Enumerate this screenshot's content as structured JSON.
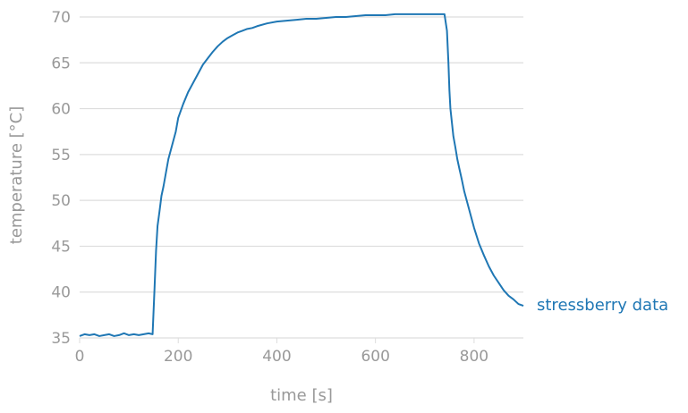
{
  "chart_data": {
    "type": "line",
    "title": "",
    "xlabel": "time [s]",
    "ylabel": "temperature [°C]",
    "xlim": [
      0,
      900
    ],
    "ylim": [
      35,
      70
    ],
    "xticks": [
      0,
      200,
      400,
      600,
      800
    ],
    "yticks": [
      35,
      40,
      45,
      50,
      55,
      60,
      65,
      70
    ],
    "grid": "horizontal",
    "legend": "inline-right",
    "colors": {
      "series": "#1f77b4",
      "text": "#999999",
      "grid": "#dddddd"
    },
    "series": [
      {
        "name": "stressberry data",
        "x": [
          0,
          10,
          20,
          30,
          40,
          50,
          60,
          70,
          80,
          90,
          100,
          110,
          120,
          130,
          140,
          148,
          152,
          155,
          158,
          162,
          166,
          170,
          175,
          180,
          185,
          190,
          195,
          200,
          210,
          220,
          230,
          240,
          250,
          260,
          270,
          280,
          290,
          300,
          310,
          320,
          330,
          340,
          350,
          360,
          380,
          400,
          420,
          440,
          460,
          480,
          500,
          520,
          540,
          560,
          580,
          600,
          620,
          640,
          660,
          680,
          700,
          720,
          740,
          745,
          748,
          750,
          752,
          755,
          758,
          762,
          766,
          770,
          775,
          780,
          790,
          800,
          810,
          820,
          830,
          840,
          850,
          860,
          870,
          880,
          890,
          900
        ],
        "y": [
          35.2,
          35.4,
          35.3,
          35.4,
          35.2,
          35.3,
          35.4,
          35.2,
          35.3,
          35.5,
          35.3,
          35.4,
          35.3,
          35.4,
          35.5,
          35.4,
          40.5,
          44.5,
          47.2,
          48.8,
          50.5,
          51.5,
          53.0,
          54.5,
          55.5,
          56.5,
          57.5,
          59.0,
          60.5,
          61.8,
          62.8,
          63.8,
          64.8,
          65.5,
          66.2,
          66.8,
          67.3,
          67.7,
          68.0,
          68.3,
          68.5,
          68.7,
          68.8,
          69.0,
          69.3,
          69.5,
          69.6,
          69.7,
          69.8,
          69.8,
          69.9,
          70.0,
          70.0,
          70.1,
          70.2,
          70.2,
          70.2,
          70.3,
          70.3,
          70.3,
          70.3,
          70.3,
          70.3,
          68.5,
          65.0,
          62.0,
          60.0,
          58.5,
          57.0,
          55.8,
          54.5,
          53.5,
          52.3,
          51.0,
          49.0,
          47.0,
          45.3,
          44.0,
          42.8,
          41.8,
          41.0,
          40.2,
          39.6,
          39.2,
          38.7,
          38.5
        ]
      }
    ]
  }
}
